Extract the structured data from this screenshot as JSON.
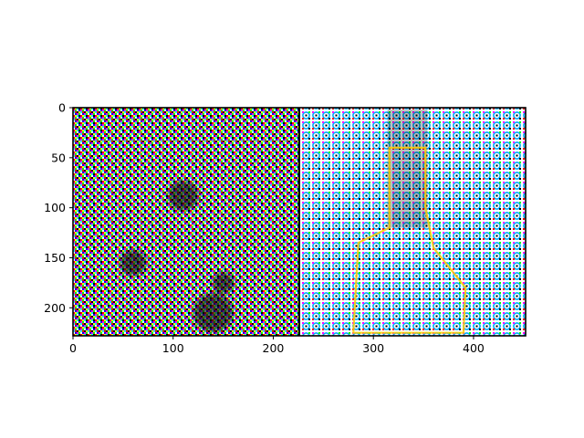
{
  "chart_data": {
    "type": "heatmap",
    "description_kind": "image",
    "image_width": 452,
    "image_height": 228,
    "panels": [
      {
        "name": "noise-panel",
        "x_range": [
          0,
          226
        ],
        "pattern": "repeating small colorful noise tiles",
        "dark_blobs": [
          {
            "cx": 110,
            "cy": 88,
            "r": 14
          },
          {
            "cx": 60,
            "cy": 155,
            "r": 12
          },
          {
            "cx": 140,
            "cy": 205,
            "r": 18
          },
          {
            "cx": 150,
            "cy": 175,
            "r": 10
          }
        ]
      },
      {
        "name": "pattern-panel",
        "x_range": [
          226,
          452
        ],
        "pattern": "repeating colorful ring tiles on white",
        "outline": "highlighted figure shape near center"
      }
    ],
    "separator_x": 226,
    "x_ticks": [
      0,
      100,
      200,
      300,
      400
    ],
    "y_ticks": [
      0,
      50,
      100,
      150,
      200
    ],
    "xlim": [
      0,
      452
    ],
    "ylim": [
      228,
      0
    ],
    "grid": false
  }
}
